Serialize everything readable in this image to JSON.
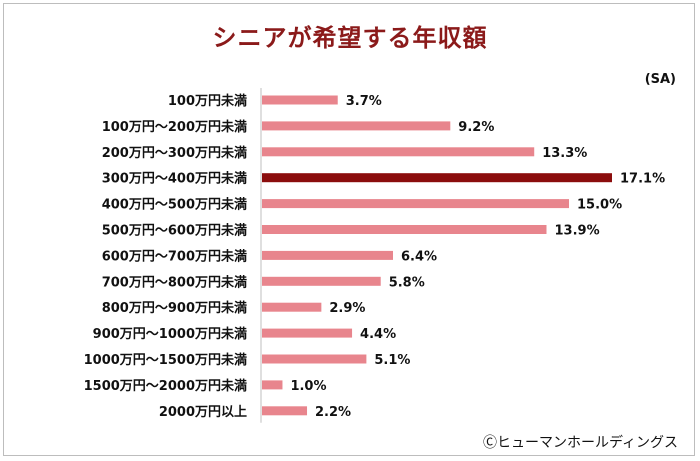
{
  "chart_data": {
    "type": "bar",
    "orientation": "horizontal",
    "title": "シニアが希望する年収額",
    "unit_note": "(SA)",
    "categories": [
      "100万円未満",
      "100万円～200万円未満",
      "200万円～300万円未満",
      "300万円～400万円未満",
      "400万円～500万円未満",
      "500万円～600万円未満",
      "600万円～700万円未満",
      "700万円～800万円未満",
      "800万円～900万円未満",
      "900万円～1000万円未満",
      "1000万円～1500万円未満",
      "1500万円～2000万円未満",
      "2000万円以上"
    ],
    "values": [
      3.7,
      9.2,
      13.3,
      17.1,
      15.0,
      13.9,
      6.4,
      5.8,
      2.9,
      4.4,
      5.1,
      1.0,
      2.2
    ],
    "value_labels": [
      "3.7%",
      "9.2%",
      "13.3%",
      "17.1%",
      "15.0%",
      "13.9%",
      "6.4%",
      "5.8%",
      "2.9%",
      "4.4%",
      "5.1%",
      "1.0%",
      "2.2%"
    ],
    "highlight_index": 3,
    "bar_color": "#e8858d",
    "highlight_color": "#8b0d0d",
    "xlim": [
      0,
      17.1
    ]
  },
  "footer": {
    "credit": "Ⓒヒューマンホールディングス"
  }
}
